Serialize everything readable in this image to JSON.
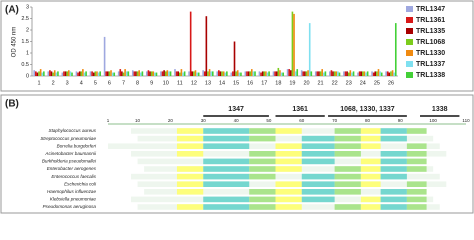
{
  "chart_data": {
    "type": "bar",
    "panel_label": "(A)",
    "y_label": "OD 450 nm",
    "categories": [
      "1",
      "2",
      "3",
      "4",
      "5",
      "6",
      "7",
      "8",
      "9",
      "10",
      "11",
      "12",
      "13",
      "14",
      "15",
      "16",
      "17",
      "18",
      "19",
      "20",
      "21",
      "22",
      "23",
      "24",
      "25",
      "26"
    ],
    "ylim": [
      0,
      3
    ],
    "yticks": [
      0,
      0.5,
      1,
      1.5,
      2,
      2.5,
      3
    ],
    "series": [
      {
        "name": "TRL1347",
        "color": "#9fa8e0",
        "values": [
          0.25,
          0.2,
          0.15,
          0.2,
          0.2,
          1.7,
          0.2,
          0.25,
          0.2,
          0.2,
          0.3,
          0.2,
          0.25,
          0.2,
          0.15,
          0.2,
          0.2,
          0.2,
          0.3,
          0.25,
          0.2,
          0.2,
          0.2,
          0.15,
          0.2,
          0.2
        ]
      },
      {
        "name": "TRL1361",
        "color": "#d81818",
        "values": [
          0.2,
          0.25,
          0.2,
          0.15,
          0.2,
          0.2,
          0.3,
          0.2,
          0.25,
          0.2,
          0.2,
          2.8,
          0.2,
          0.25,
          0.2,
          0.2,
          0.15,
          0.2,
          0.3,
          0.2,
          0.2,
          0.25,
          0.2,
          0.2,
          0.15,
          0.2
        ]
      },
      {
        "name": "TRL1335",
        "color": "#a80000",
        "values": [
          0.15,
          0.2,
          0.2,
          0.2,
          0.15,
          0.2,
          0.2,
          0.2,
          0.2,
          0.25,
          0.2,
          0.2,
          2.6,
          0.2,
          1.5,
          0.2,
          0.2,
          0.2,
          0.25,
          0.2,
          0.2,
          0.2,
          0.2,
          0.2,
          0.2,
          0.15
        ]
      },
      {
        "name": "TRL1068",
        "color": "#7ccc1c",
        "values": [
          0.2,
          0.15,
          0.2,
          0.2,
          0.2,
          0.2,
          0.15,
          0.2,
          0.2,
          0.2,
          0.15,
          0.2,
          0.2,
          0.2,
          0.2,
          0.2,
          0.2,
          0.35,
          2.8,
          0.2,
          0.2,
          0.2,
          0.15,
          0.2,
          0.2,
          0.2
        ]
      },
      {
        "name": "TRL1330",
        "color": "#f08a10",
        "values": [
          0.3,
          0.25,
          0.25,
          0.3,
          0.2,
          0.25,
          0.3,
          0.25,
          0.2,
          0.25,
          0.3,
          0.25,
          0.3,
          0.2,
          0.25,
          0.3,
          0.2,
          0.25,
          2.7,
          0.25,
          0.3,
          0.2,
          0.25,
          0.2,
          0.3,
          0.25
        ]
      },
      {
        "name": "TRL1337",
        "color": "#7fe0f0",
        "values": [
          0.15,
          0.15,
          0.2,
          0.15,
          0.15,
          0.15,
          0.2,
          0.15,
          0.15,
          0.2,
          0.15,
          0.15,
          0.2,
          0.15,
          0.15,
          0.2,
          0.15,
          0.15,
          0.2,
          2.3,
          0.15,
          0.2,
          0.15,
          0.15,
          0.2,
          0.15
        ]
      },
      {
        "name": "TRL1338",
        "color": "#44d038",
        "values": [
          0.2,
          0.2,
          0.15,
          0.2,
          0.2,
          0.15,
          0.2,
          0.2,
          0.15,
          0.2,
          0.2,
          0.15,
          0.2,
          0.2,
          0.15,
          0.2,
          0.2,
          0.15,
          0.3,
          0.2,
          0.2,
          0.15,
          0.2,
          0.2,
          0.15,
          2.3
        ]
      }
    ]
  },
  "alignment": {
    "panel_label": "(B)",
    "positions": [
      1,
      10,
      20,
      30,
      40,
      50,
      60,
      70,
      80,
      90,
      100,
      110
    ],
    "epitopes": [
      "1347",
      "1361",
      "1068, 1330, 1337",
      "1338"
    ],
    "organisms": [
      "Staphylococcus aureus",
      "Streptococcus pneumoniae",
      "Borrelia burgdorferi",
      "Acinetobacter baumannii",
      "Burkholderia pseudomallei",
      "Enterobacter aerogenes",
      "Enterococcus faecalis",
      "Escherichia coli",
      "Haemophilus influenzae",
      "Klebsiella pneumoniae",
      "Pseudomonas aeruginosa"
    ]
  }
}
